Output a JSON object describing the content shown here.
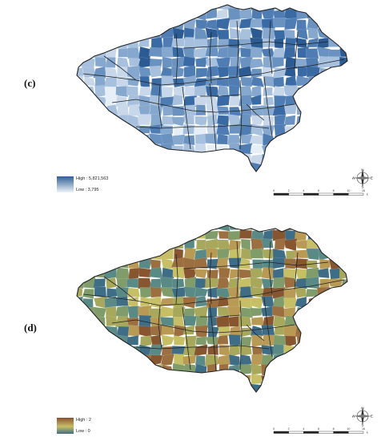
{
  "panels": [
    {
      "label": "(c)",
      "legend": {
        "high_label": "High : 5,821,563",
        "low_label": "Low : 3,795",
        "high_color": "#2f5f95",
        "low_color": "#eef3f8"
      },
      "palette": [
        "#e6eef6",
        "#c8d8ea",
        "#a7c0dd",
        "#86a8cf",
        "#6a92c0",
        "#4f7db3",
        "#3a6aa3",
        "#2c5a93"
      ]
    },
    {
      "label": "(d)",
      "legend": {
        "high_label": "High : 2",
        "low_label": "Low : 0",
        "high_color": "#8a5232",
        "low_color": "#3f6d85"
      },
      "palette": [
        "#3f6d85",
        "#5a8a86",
        "#7f9c6a",
        "#a8a85c",
        "#c7bf66",
        "#b89a55",
        "#9b6f40",
        "#87552f"
      ]
    }
  ],
  "scale": {
    "ticks": [
      "0",
      "2",
      "4",
      "6",
      "8",
      "10",
      "16"
    ],
    "unit": "km"
  },
  "compass": {
    "north": "N",
    "south": "S",
    "east": "E",
    "west": "W"
  }
}
